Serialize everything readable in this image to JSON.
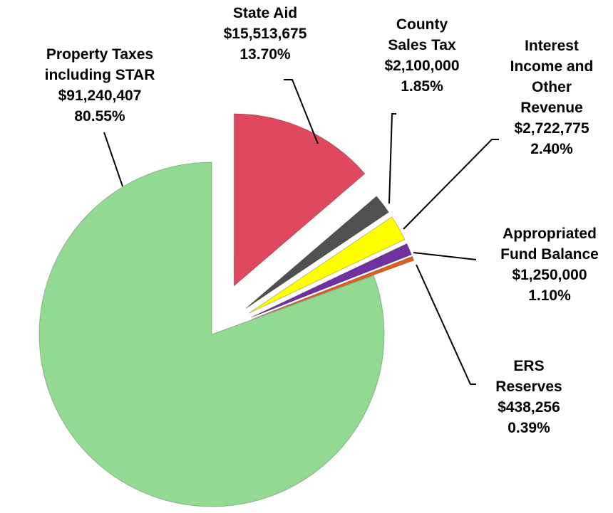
{
  "chart_data": {
    "type": "pie",
    "categories": [
      "Property Taxes including STAR",
      "State Aid",
      "County Sales Tax",
      "Interest Income and Other Revenue",
      "Appropriated Fund Balance",
      "ERS Reserves"
    ],
    "values": [
      80.55,
      13.7,
      1.85,
      2.4,
      1.1,
      0.39
    ],
    "value_labels": [
      "80.55%",
      "13.70%",
      "1.85%",
      "2.40%",
      "1.10%",
      "0.39%"
    ],
    "amounts": [
      91240407,
      15513675,
      2100000,
      2722775,
      1250000,
      438256
    ],
    "amount_labels": [
      "$91,240,407",
      "$15,513,675",
      "$2,100,000",
      "$2,722,775",
      "$1,250,000",
      "$438,256"
    ],
    "colors": [
      "#92da92",
      "#e04860",
      "#505050",
      "#ffff00",
      "#7030a0",
      "#e06018"
    ]
  }
}
